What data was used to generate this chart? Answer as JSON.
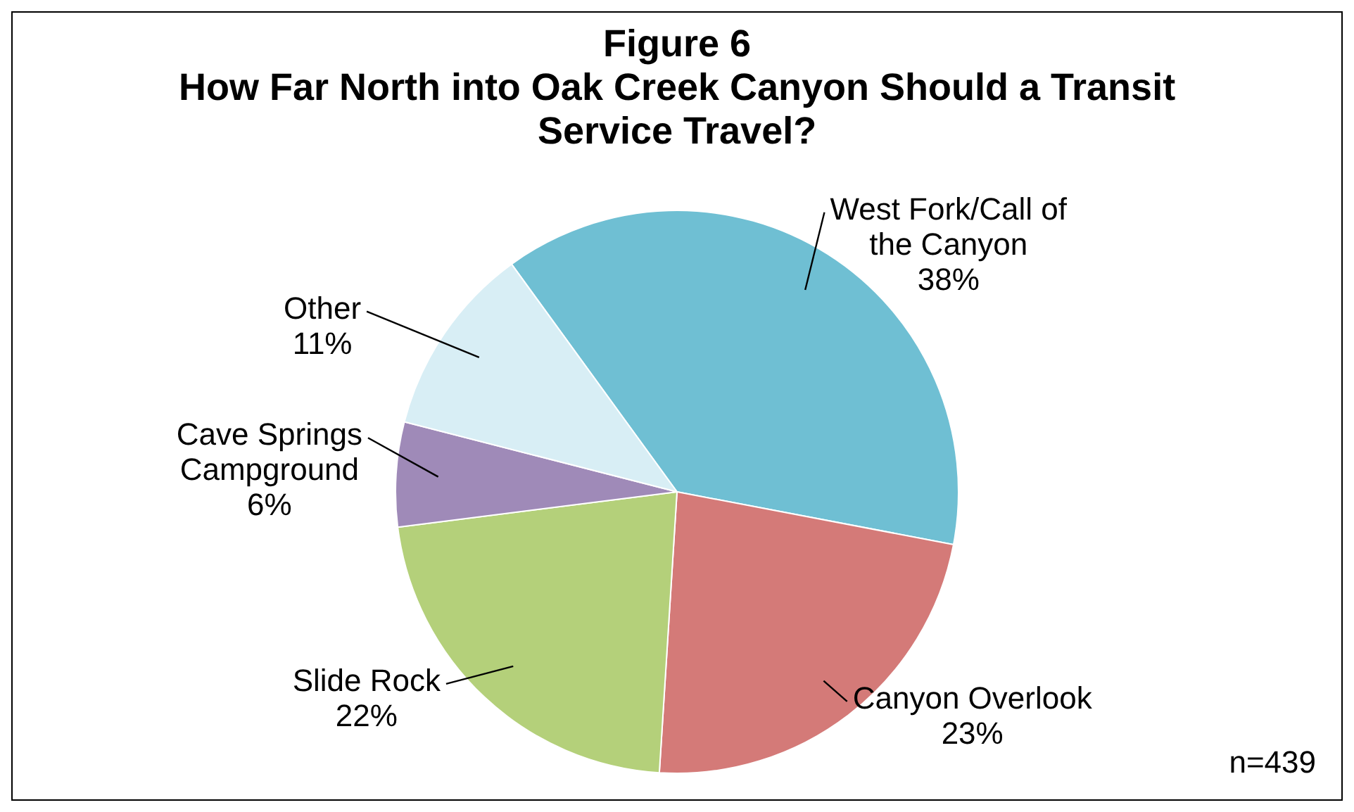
{
  "chart_data": {
    "type": "pie",
    "title": "Figure 6",
    "subtitle": "How Far North into Oak Creek Canyon Should a Transit Service Travel?",
    "categories": [
      "West Fork/Call of the Canyon",
      "Canyon Overlook",
      "Slide Rock",
      "Cave Springs Campground",
      "Other"
    ],
    "values": [
      38,
      23,
      22,
      6,
      11
    ],
    "value_labels": [
      "38%",
      "23%",
      "22%",
      "6%",
      "11%"
    ],
    "colors": [
      "#6fbfd3",
      "#d47a78",
      "#b4d07a",
      "#9f8ab8",
      "#d8eef5"
    ],
    "legend": false,
    "annotations": [
      "n=439"
    ]
  }
}
